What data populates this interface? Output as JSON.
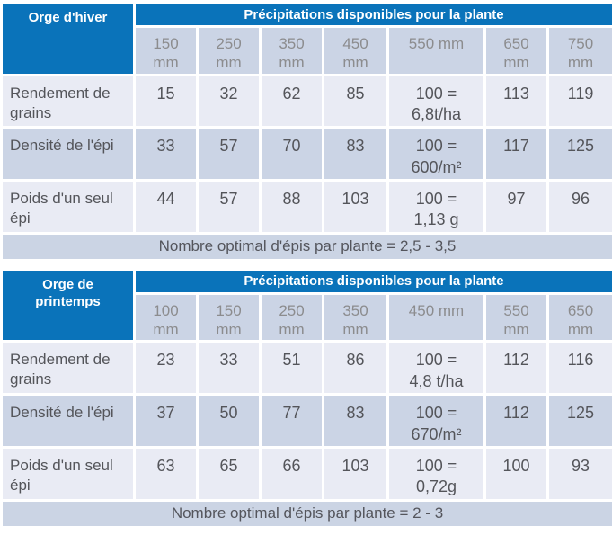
{
  "colors": {
    "header_blue": "#0a73ba",
    "row_light": "#e9ebf4",
    "row_dark": "#cbd4e5",
    "footer_band": "#cbd4e4",
    "cell_border": "#ffffff",
    "subheader_text": "#8c8c8e",
    "data_text": "#54555a",
    "header_text": "#ffffff"
  },
  "chart_data": [
    {
      "type": "table",
      "title": "Orge d'hiver",
      "header": "Précipitations disponibles pour la plante",
      "columns": [
        "150\nmm",
        "250\nmm",
        "350\nmm",
        "450\nmm",
        "550 mm",
        "650\nmm",
        "750\nmm"
      ],
      "rows": [
        {
          "label": "Rendement de grains",
          "values": [
            "15",
            "32",
            "62",
            "85",
            "100 =\n6,8t/ha",
            "113",
            "119"
          ]
        },
        {
          "label": "Densité de l'épi",
          "values": [
            "33",
            "57",
            "70",
            "83",
            "100 =\n600/m²",
            "117",
            "125"
          ]
        },
        {
          "label": "Poids d'un seul épi",
          "values": [
            "44",
            "57",
            "88",
            "103",
            "100 =\n1,13 g",
            "97",
            "96"
          ]
        }
      ],
      "footer": "Nombre optimal d'épis par plante = 2,5 - 3,5"
    },
    {
      "type": "table",
      "title": "Orge de\nprintemps",
      "header": "Précipitations disponibles pour la plante",
      "columns": [
        "100\nmm",
        "150\nmm",
        "250\nmm",
        "350\nmm",
        "450 mm",
        "550\nmm",
        "650\nmm"
      ],
      "rows": [
        {
          "label": "Rendement de grains",
          "values": [
            "23",
            "33",
            "51",
            "86",
            "100 =\n4,8 t/ha",
            "112",
            "116"
          ]
        },
        {
          "label": "Densité de l'épi",
          "values": [
            "37",
            "50",
            "77",
            "83",
            "100 =\n670/m²",
            "112",
            "125"
          ]
        },
        {
          "label": "Poids d'un seul épi",
          "values": [
            "63",
            "65",
            "66",
            "103",
            "100 =\n0,72g",
            "100",
            "93"
          ]
        }
      ],
      "footer": "Nombre optimal d'épis par plante = 2 - 3"
    }
  ]
}
